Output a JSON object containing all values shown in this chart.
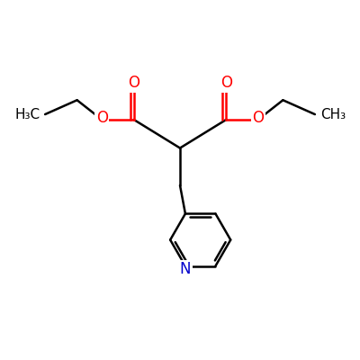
{
  "background_color": "#ffffff",
  "atom_color_O": "#ff0000",
  "atom_color_N": "#0000cc",
  "bond_color": "#000000",
  "bond_width": 1.8,
  "figsize": [
    4.0,
    4.0
  ],
  "dpi": 100,
  "xlim": [
    0,
    10
  ],
  "ylim": [
    0,
    10
  ],
  "label_fontsize": 12,
  "label_fontsize_small": 11
}
